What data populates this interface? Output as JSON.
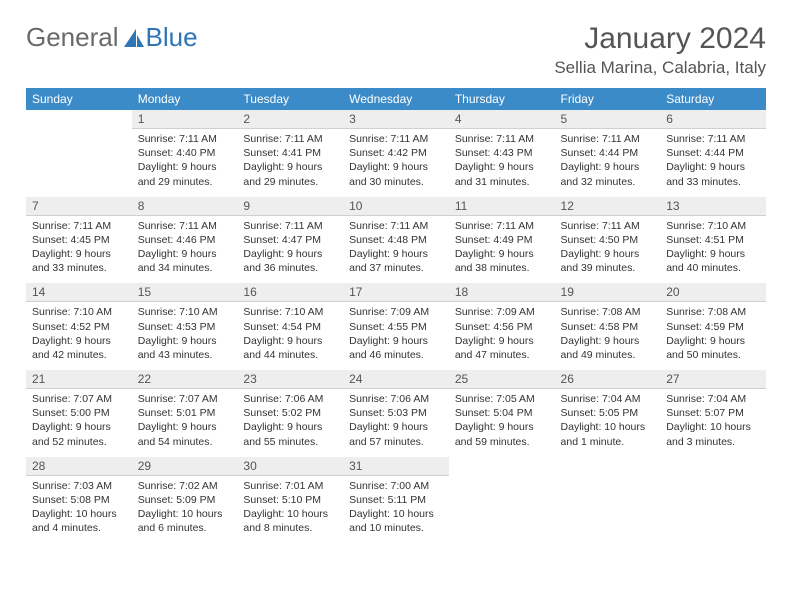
{
  "brand": {
    "word1": "General",
    "word2": "Blue",
    "logo_color": "#2f75b5"
  },
  "title": "January 2024",
  "location": "Sellia Marina, Calabria, Italy",
  "colors": {
    "header_bar": "#3b8bc9",
    "header_text": "#ffffff",
    "daynum_bg": "#eeeeee",
    "text": "#333333"
  },
  "weekdays": [
    "Sunday",
    "Monday",
    "Tuesday",
    "Wednesday",
    "Thursday",
    "Friday",
    "Saturday"
  ],
  "grid": [
    [
      {
        "blank": true
      },
      {
        "n": "1",
        "sr": "Sunrise: 7:11 AM",
        "ss": "Sunset: 4:40 PM",
        "dl": "Daylight: 9 hours and 29 minutes."
      },
      {
        "n": "2",
        "sr": "Sunrise: 7:11 AM",
        "ss": "Sunset: 4:41 PM",
        "dl": "Daylight: 9 hours and 29 minutes."
      },
      {
        "n": "3",
        "sr": "Sunrise: 7:11 AM",
        "ss": "Sunset: 4:42 PM",
        "dl": "Daylight: 9 hours and 30 minutes."
      },
      {
        "n": "4",
        "sr": "Sunrise: 7:11 AM",
        "ss": "Sunset: 4:43 PM",
        "dl": "Daylight: 9 hours and 31 minutes."
      },
      {
        "n": "5",
        "sr": "Sunrise: 7:11 AM",
        "ss": "Sunset: 4:44 PM",
        "dl": "Daylight: 9 hours and 32 minutes."
      },
      {
        "n": "6",
        "sr": "Sunrise: 7:11 AM",
        "ss": "Sunset: 4:44 PM",
        "dl": "Daylight: 9 hours and 33 minutes."
      }
    ],
    [
      {
        "n": "7",
        "sr": "Sunrise: 7:11 AM",
        "ss": "Sunset: 4:45 PM",
        "dl": "Daylight: 9 hours and 33 minutes."
      },
      {
        "n": "8",
        "sr": "Sunrise: 7:11 AM",
        "ss": "Sunset: 4:46 PM",
        "dl": "Daylight: 9 hours and 34 minutes."
      },
      {
        "n": "9",
        "sr": "Sunrise: 7:11 AM",
        "ss": "Sunset: 4:47 PM",
        "dl": "Daylight: 9 hours and 36 minutes."
      },
      {
        "n": "10",
        "sr": "Sunrise: 7:11 AM",
        "ss": "Sunset: 4:48 PM",
        "dl": "Daylight: 9 hours and 37 minutes."
      },
      {
        "n": "11",
        "sr": "Sunrise: 7:11 AM",
        "ss": "Sunset: 4:49 PM",
        "dl": "Daylight: 9 hours and 38 minutes."
      },
      {
        "n": "12",
        "sr": "Sunrise: 7:11 AM",
        "ss": "Sunset: 4:50 PM",
        "dl": "Daylight: 9 hours and 39 minutes."
      },
      {
        "n": "13",
        "sr": "Sunrise: 7:10 AM",
        "ss": "Sunset: 4:51 PM",
        "dl": "Daylight: 9 hours and 40 minutes."
      }
    ],
    [
      {
        "n": "14",
        "sr": "Sunrise: 7:10 AM",
        "ss": "Sunset: 4:52 PM",
        "dl": "Daylight: 9 hours and 42 minutes."
      },
      {
        "n": "15",
        "sr": "Sunrise: 7:10 AM",
        "ss": "Sunset: 4:53 PM",
        "dl": "Daylight: 9 hours and 43 minutes."
      },
      {
        "n": "16",
        "sr": "Sunrise: 7:10 AM",
        "ss": "Sunset: 4:54 PM",
        "dl": "Daylight: 9 hours and 44 minutes."
      },
      {
        "n": "17",
        "sr": "Sunrise: 7:09 AM",
        "ss": "Sunset: 4:55 PM",
        "dl": "Daylight: 9 hours and 46 minutes."
      },
      {
        "n": "18",
        "sr": "Sunrise: 7:09 AM",
        "ss": "Sunset: 4:56 PM",
        "dl": "Daylight: 9 hours and 47 minutes."
      },
      {
        "n": "19",
        "sr": "Sunrise: 7:08 AM",
        "ss": "Sunset: 4:58 PM",
        "dl": "Daylight: 9 hours and 49 minutes."
      },
      {
        "n": "20",
        "sr": "Sunrise: 7:08 AM",
        "ss": "Sunset: 4:59 PM",
        "dl": "Daylight: 9 hours and 50 minutes."
      }
    ],
    [
      {
        "n": "21",
        "sr": "Sunrise: 7:07 AM",
        "ss": "Sunset: 5:00 PM",
        "dl": "Daylight: 9 hours and 52 minutes."
      },
      {
        "n": "22",
        "sr": "Sunrise: 7:07 AM",
        "ss": "Sunset: 5:01 PM",
        "dl": "Daylight: 9 hours and 54 minutes."
      },
      {
        "n": "23",
        "sr": "Sunrise: 7:06 AM",
        "ss": "Sunset: 5:02 PM",
        "dl": "Daylight: 9 hours and 55 minutes."
      },
      {
        "n": "24",
        "sr": "Sunrise: 7:06 AM",
        "ss": "Sunset: 5:03 PM",
        "dl": "Daylight: 9 hours and 57 minutes."
      },
      {
        "n": "25",
        "sr": "Sunrise: 7:05 AM",
        "ss": "Sunset: 5:04 PM",
        "dl": "Daylight: 9 hours and 59 minutes."
      },
      {
        "n": "26",
        "sr": "Sunrise: 7:04 AM",
        "ss": "Sunset: 5:05 PM",
        "dl": "Daylight: 10 hours and 1 minute."
      },
      {
        "n": "27",
        "sr": "Sunrise: 7:04 AM",
        "ss": "Sunset: 5:07 PM",
        "dl": "Daylight: 10 hours and 3 minutes."
      }
    ],
    [
      {
        "n": "28",
        "sr": "Sunrise: 7:03 AM",
        "ss": "Sunset: 5:08 PM",
        "dl": "Daylight: 10 hours and 4 minutes."
      },
      {
        "n": "29",
        "sr": "Sunrise: 7:02 AM",
        "ss": "Sunset: 5:09 PM",
        "dl": "Daylight: 10 hours and 6 minutes."
      },
      {
        "n": "30",
        "sr": "Sunrise: 7:01 AM",
        "ss": "Sunset: 5:10 PM",
        "dl": "Daylight: 10 hours and 8 minutes."
      },
      {
        "n": "31",
        "sr": "Sunrise: 7:00 AM",
        "ss": "Sunset: 5:11 PM",
        "dl": "Daylight: 10 hours and 10 minutes."
      },
      {
        "blank": true
      },
      {
        "blank": true
      },
      {
        "blank": true
      }
    ]
  ]
}
